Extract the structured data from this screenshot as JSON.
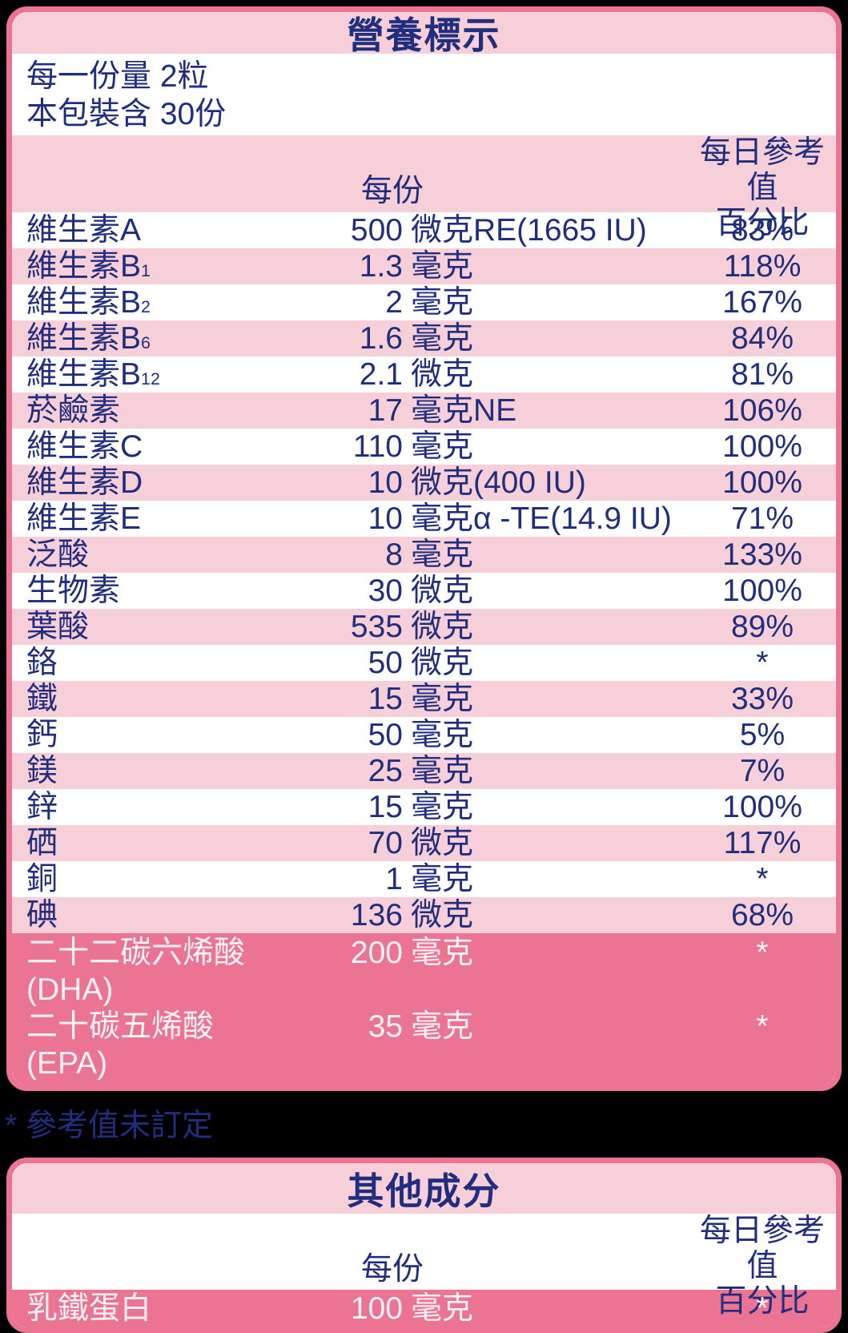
{
  "page": {
    "background_color": "#000000"
  },
  "colors": {
    "light_pink": "#f7cfd9",
    "dark_pink": "#ec7493",
    "navy_text": "#212e7d",
    "white_text": "#fdf3f6"
  },
  "nutrition_table": {
    "title": "營養標示",
    "serving_size": "每一份量 2粒",
    "servings_per_package": "本包裝含 30份",
    "col_per_serving": "每份",
    "col_dv_line1": "每日參考值",
    "col_dv_line2": "百分比",
    "rows": [
      {
        "name": "維生素A",
        "name_sub": "",
        "amount": "500",
        "unit": "微克RE(1665 IU)",
        "dv": "83%"
      },
      {
        "name": "維生素B",
        "name_sub": "1",
        "amount": "1.3",
        "unit": "毫克",
        "dv": "118%"
      },
      {
        "name": "維生素B",
        "name_sub": "2",
        "amount": "2",
        "unit": "毫克",
        "dv": "167%"
      },
      {
        "name": "維生素B",
        "name_sub": "6",
        "amount": "1.6",
        "unit": "毫克",
        "dv": "84%"
      },
      {
        "name": "維生素B",
        "name_sub": "12",
        "amount": "2.1",
        "unit": "微克",
        "dv": "81%"
      },
      {
        "name": "菸鹼素",
        "name_sub": "",
        "amount": "17",
        "unit": "毫克NE",
        "dv": "106%"
      },
      {
        "name": "維生素C",
        "name_sub": "",
        "amount": "110",
        "unit": "毫克",
        "dv": "100%"
      },
      {
        "name": "維生素D",
        "name_sub": "",
        "amount": "10",
        "unit": "微克(400 IU)",
        "dv": "100%"
      },
      {
        "name": "維生素E",
        "name_sub": "",
        "amount": "10",
        "unit": "毫克α -TE(14.9 IU)",
        "dv": "71%"
      },
      {
        "name": "泛酸",
        "name_sub": "",
        "amount": "8",
        "unit": "毫克",
        "dv": "133%"
      },
      {
        "name": "生物素",
        "name_sub": "",
        "amount": "30",
        "unit": "微克",
        "dv": "100%"
      },
      {
        "name": "葉酸",
        "name_sub": "",
        "amount": "535",
        "unit": "微克",
        "dv": "89%"
      },
      {
        "name": "鉻",
        "name_sub": "",
        "amount": "50",
        "unit": "微克",
        "dv": "*"
      },
      {
        "name": "鐵",
        "name_sub": "",
        "amount": "15",
        "unit": "毫克",
        "dv": "33%"
      },
      {
        "name": "鈣",
        "name_sub": "",
        "amount": "50",
        "unit": "毫克",
        "dv": "5%"
      },
      {
        "name": "鎂",
        "name_sub": "",
        "amount": "25",
        "unit": "毫克",
        "dv": "7%"
      },
      {
        "name": "鋅",
        "name_sub": "",
        "amount": "15",
        "unit": "毫克",
        "dv": "100%"
      },
      {
        "name": "硒",
        "name_sub": "",
        "amount": "70",
        "unit": "微克",
        "dv": "117%"
      },
      {
        "name": "銅",
        "name_sub": "",
        "amount": "1",
        "unit": "毫克",
        "dv": "*"
      },
      {
        "name": "碘",
        "name_sub": "",
        "amount": "136",
        "unit": "微克",
        "dv": "68%"
      }
    ],
    "highlight_rows": [
      {
        "name_line1": "二十二碳六烯酸",
        "name_line2": "(DHA)",
        "amount": "200",
        "unit": "毫克",
        "dv": "*"
      },
      {
        "name_line1": "二十碳五烯酸",
        "name_line2": "(EPA)",
        "amount": "35",
        "unit": "毫克",
        "dv": "*"
      }
    ]
  },
  "footnote": "* 參考值未訂定",
  "other_table": {
    "title": "其他成分",
    "col_per_serving": "每份",
    "col_dv_line1": "每日參考值",
    "col_dv_line2": "百分比",
    "rows": [
      {
        "name": "乳鐵蛋白",
        "amount": "100",
        "unit": "毫克",
        "dv": "*"
      }
    ]
  }
}
